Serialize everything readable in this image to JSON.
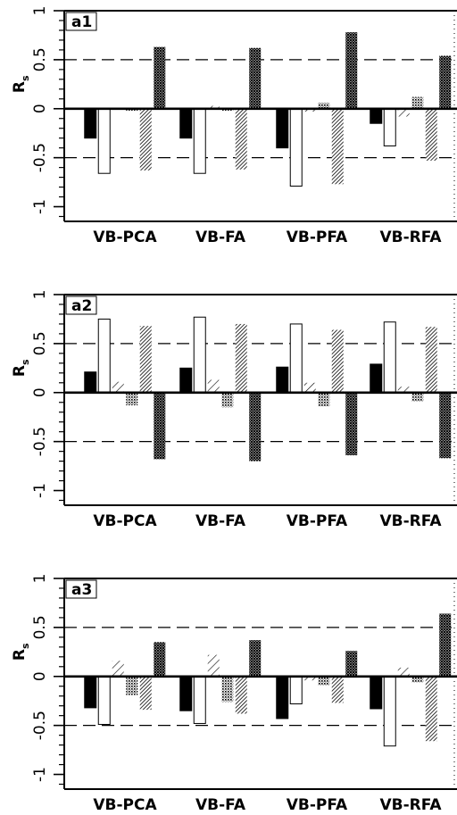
{
  "chart_data": [
    {
      "type": "bar",
      "panel_label": "a1",
      "categories": [
        "VB-PCA",
        "VB-FA",
        "VB-PFA",
        "VB-RFA"
      ],
      "ylabel": "R",
      "ylabel_sub": "s",
      "ylim": [
        -1.15,
        1.0
      ],
      "yticks": [
        -1,
        -0.5,
        0,
        0.5,
        1
      ],
      "ytick_labels": [
        "-1",
        "-0.5",
        "0",
        "0.5",
        "1"
      ],
      "reference_lines": [
        0.5,
        -0.5
      ],
      "series": [
        {
          "fill": "solid",
          "values": [
            -0.3,
            -0.3,
            -0.4,
            -0.15
          ]
        },
        {
          "fill": "open",
          "values": [
            -0.66,
            -0.66,
            -0.79,
            -0.38
          ]
        },
        {
          "fill": "hatch-light",
          "values": [
            -0.01,
            0.03,
            -0.03,
            -0.08
          ]
        },
        {
          "fill": "dots",
          "values": [
            -0.02,
            -0.02,
            0.06,
            0.12
          ]
        },
        {
          "fill": "hatch-dense",
          "values": [
            -0.63,
            -0.62,
            -0.77,
            -0.53
          ]
        },
        {
          "fill": "crosshatch",
          "values": [
            0.63,
            0.62,
            0.78,
            0.54
          ]
        }
      ]
    },
    {
      "type": "bar",
      "panel_label": "a2",
      "categories": [
        "VB-PCA",
        "VB-FA",
        "VB-PFA",
        "VB-RFA"
      ],
      "ylabel": "R",
      "ylabel_sub": "s",
      "ylim": [
        -1.15,
        1.0
      ],
      "yticks": [
        -1,
        -0.5,
        0,
        0.5,
        1
      ],
      "ytick_labels": [
        "-1",
        "-0.5",
        "0",
        "0.5",
        "1"
      ],
      "reference_lines": [
        0.5,
        -0.5
      ],
      "series": [
        {
          "fill": "solid",
          "values": [
            0.21,
            0.25,
            0.26,
            0.29
          ]
        },
        {
          "fill": "open",
          "values": [
            0.75,
            0.77,
            0.7,
            0.72
          ]
        },
        {
          "fill": "hatch-light",
          "values": [
            0.11,
            0.13,
            0.1,
            0.06
          ]
        },
        {
          "fill": "dots",
          "values": [
            -0.13,
            -0.15,
            -0.14,
            -0.09
          ]
        },
        {
          "fill": "hatch-dense",
          "values": [
            0.68,
            0.7,
            0.64,
            0.67
          ]
        },
        {
          "fill": "crosshatch",
          "values": [
            -0.68,
            -0.7,
            -0.64,
            -0.67
          ]
        }
      ]
    },
    {
      "type": "bar",
      "panel_label": "a3",
      "categories": [
        "VB-PCA",
        "VB-FA",
        "VB-PFA",
        "VB-RFA"
      ],
      "ylabel": "R",
      "ylabel_sub": "s",
      "ylim": [
        -1.15,
        1.0
      ],
      "yticks": [
        -1,
        -0.5,
        0,
        0.5,
        1
      ],
      "ytick_labels": [
        "-1",
        "-0.5",
        "0",
        "0.5",
        "1"
      ],
      "reference_lines": [
        0.5,
        -0.5
      ],
      "series": [
        {
          "fill": "solid",
          "values": [
            -0.32,
            -0.35,
            -0.43,
            -0.33
          ]
        },
        {
          "fill": "open",
          "values": [
            -0.49,
            -0.48,
            -0.28,
            -0.71
          ]
        },
        {
          "fill": "hatch-light",
          "values": [
            0.16,
            0.22,
            -0.04,
            0.09
          ]
        },
        {
          "fill": "dots",
          "values": [
            -0.19,
            -0.26,
            -0.09,
            -0.06
          ]
        },
        {
          "fill": "hatch-dense",
          "values": [
            -0.34,
            -0.38,
            -0.27,
            -0.66
          ]
        },
        {
          "fill": "crosshatch",
          "values": [
            0.35,
            0.37,
            0.26,
            0.64
          ]
        }
      ]
    }
  ]
}
